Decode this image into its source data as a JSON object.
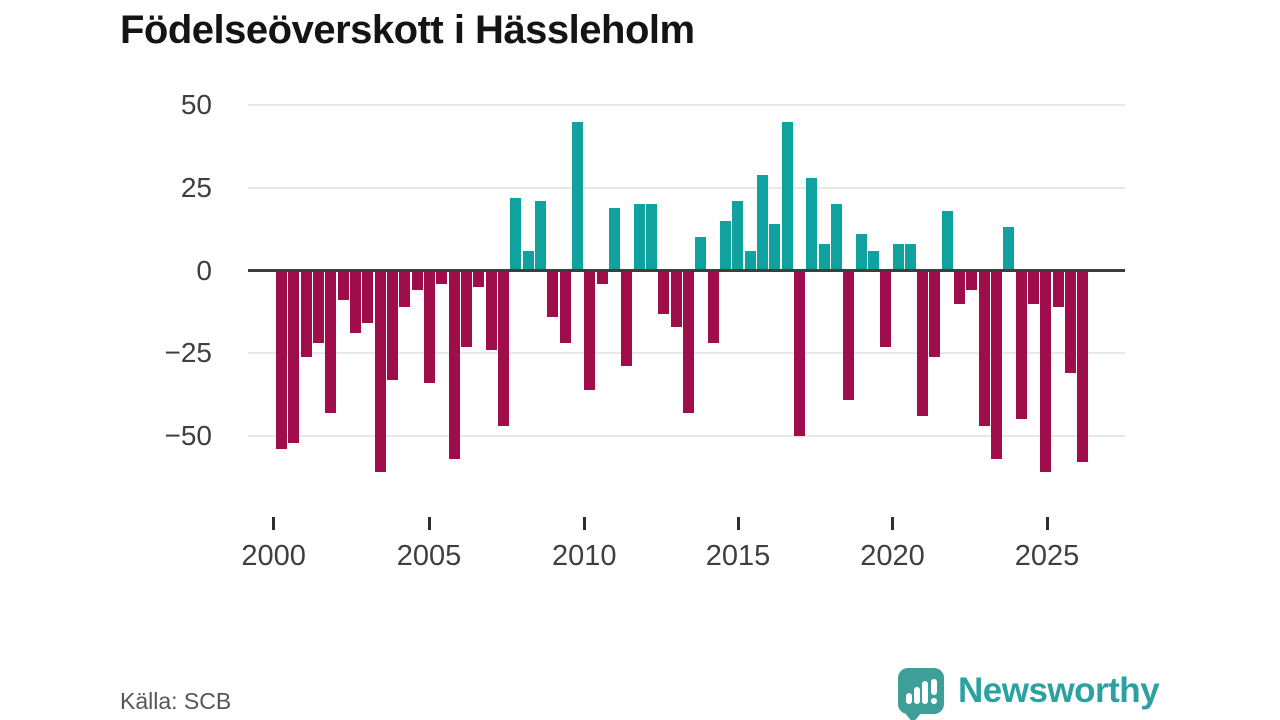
{
  "title": "Födelseöverskott i Hässleholm",
  "source": "Källa: SCB",
  "brand": {
    "name": "Newsworthy",
    "icon": "bar-chart-speech-bubble-icon"
  },
  "colors": {
    "positive_bar": "#10a29e",
    "negative_bar": "#a00d4b",
    "zero_line": "#3d3d3d",
    "gridline": "#e8e8e8",
    "brand_teal": "#2ba2a1"
  },
  "chart_data": {
    "type": "bar",
    "title": "Födelseöverskott i Hässleholm",
    "xlabel": "",
    "ylabel": "",
    "grid": "horizontal",
    "legend": "none",
    "ylim": [
      -65,
      50
    ],
    "y_tick_values": [
      50,
      25,
      0,
      -25,
      -50
    ],
    "y_tick_labels": [
      "50",
      "25",
      "0",
      "−25",
      "−50"
    ],
    "x_tick_labels": [
      "2000",
      "2005",
      "2010",
      "2015",
      "2020",
      "2025"
    ],
    "x_range_years": [
      2000,
      2026
    ],
    "values": [
      -54,
      -52,
      -26,
      -22,
      -43,
      -9,
      -19,
      -16,
      -61,
      -33,
      -11,
      -6,
      -34,
      -4,
      -57,
      -23,
      -5,
      -24,
      -47,
      22,
      6,
      21,
      -14,
      -22,
      45,
      -36,
      -4,
      19,
      -29,
      20,
      20,
      -13,
      -17,
      -43,
      10,
      -22,
      15,
      21,
      6,
      29,
      14,
      45,
      -50,
      28,
      8,
      20,
      -39,
      11,
      6,
      -23,
      8,
      8,
      -44,
      -26,
      18,
      -10,
      -6,
      -47,
      -57,
      13,
      -45,
      -10,
      -61,
      -11,
      -31,
      -58
    ]
  }
}
